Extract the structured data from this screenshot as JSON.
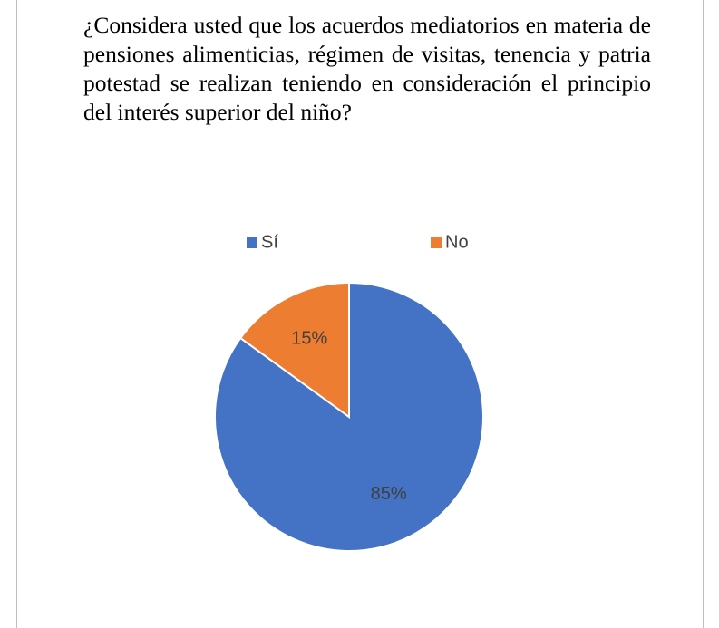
{
  "chart_data": {
    "type": "pie",
    "title": "¿Considera usted que los acuerdos mediatorios en materia de pensiones alimenticias, régimen de visitas, tenencia y patria potestad se realizan teniendo en consideración el principio del interés superior del niño?",
    "categories": [
      "Sí",
      "No"
    ],
    "values": [
      85,
      15
    ],
    "value_labels": [
      "85%",
      "15%"
    ],
    "colors": [
      "#4472c4",
      "#ed7d31"
    ],
    "legend": "top"
  }
}
